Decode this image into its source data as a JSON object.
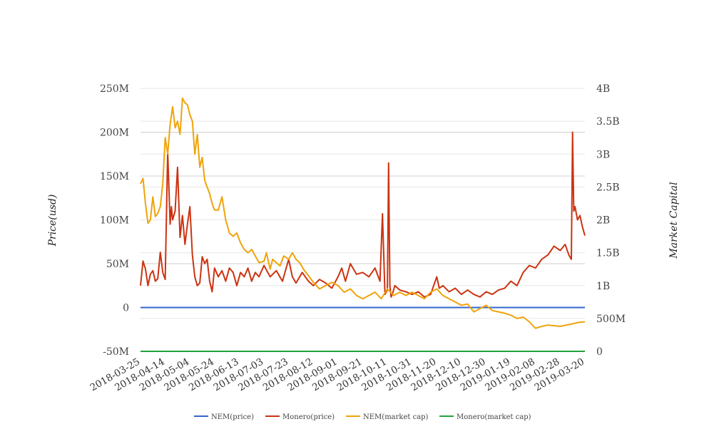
{
  "chart_data": {
    "type": "line",
    "title": "",
    "ylabel": "Price(usd)",
    "y2label": "Market Capital",
    "ylim": [
      -50000000,
      250000000
    ],
    "y2lim": [
      0,
      4000000000
    ],
    "yticks": [
      "250M",
      "200M",
      "150M",
      "100M",
      "50M",
      "0",
      "-50M"
    ],
    "y2ticks": [
      "4B",
      "3.5B",
      "3B",
      "2.5B",
      "2B",
      "1.5B",
      "1B",
      "500M",
      "0"
    ],
    "xticks": [
      "2018-03-25",
      "2018-04-14",
      "2018-05-04",
      "2018-05-24",
      "2018-06-13",
      "2018-07-03",
      "2018-07-23",
      "2018-08-12",
      "2018-09-01",
      "2018-09-21",
      "2018-10-11",
      "2018-10-31",
      "2018-11-20",
      "2018-12-10",
      "2018-12-30",
      "2019-01-19",
      "2019-02-08",
      "2019-02-28",
      "2019-03-20"
    ],
    "x_range": [
      "2018-03-25",
      "2019-03-20"
    ],
    "legend_position": "bottom",
    "grid": true,
    "series": [
      {
        "name": "NEM(price)",
        "axis": "left",
        "color": "#3366cc",
        "x": [
          "2018-03-25",
          "2019-03-20"
        ],
        "values": [
          0,
          0
        ]
      },
      {
        "name": "Monero(price)",
        "axis": "left",
        "color": "#cc3311",
        "x": [
          "2018-03-25",
          "2018-03-27",
          "2018-03-29",
          "2018-03-31",
          "2018-04-02",
          "2018-04-04",
          "2018-04-06",
          "2018-04-08",
          "2018-04-10",
          "2018-04-12",
          "2018-04-14",
          "2018-04-16",
          "2018-04-18",
          "2018-04-19",
          "2018-04-20",
          "2018-04-22",
          "2018-04-24",
          "2018-04-26",
          "2018-04-28",
          "2018-04-30",
          "2018-05-02",
          "2018-05-04",
          "2018-05-06",
          "2018-05-08",
          "2018-05-10",
          "2018-05-12",
          "2018-05-14",
          "2018-05-16",
          "2018-05-18",
          "2018-05-20",
          "2018-05-22",
          "2018-05-24",
          "2018-05-27",
          "2018-05-30",
          "2018-06-02",
          "2018-06-05",
          "2018-06-08",
          "2018-06-11",
          "2018-06-14",
          "2018-06-17",
          "2018-06-20",
          "2018-06-23",
          "2018-06-26",
          "2018-06-29",
          "2018-07-03",
          "2018-07-08",
          "2018-07-13",
          "2018-07-18",
          "2018-07-23",
          "2018-07-26",
          "2018-07-29",
          "2018-08-03",
          "2018-08-08",
          "2018-08-12",
          "2018-08-17",
          "2018-08-22",
          "2018-08-27",
          "2018-09-01",
          "2018-09-04",
          "2018-09-07",
          "2018-09-11",
          "2018-09-16",
          "2018-09-21",
          "2018-09-26",
          "2018-10-01",
          "2018-10-05",
          "2018-10-07",
          "2018-10-09",
          "2018-10-11",
          "2018-10-12",
          "2018-10-13",
          "2018-10-14",
          "2018-10-15",
          "2018-10-17",
          "2018-10-21",
          "2018-10-26",
          "2018-10-31",
          "2018-11-05",
          "2018-11-10",
          "2018-11-15",
          "2018-11-20",
          "2018-11-22",
          "2018-11-25",
          "2018-11-30",
          "2018-12-05",
          "2018-12-10",
          "2018-12-15",
          "2018-12-20",
          "2018-12-25",
          "2018-12-30",
          "2019-01-04",
          "2019-01-09",
          "2019-01-14",
          "2019-01-19",
          "2019-01-24",
          "2019-01-29",
          "2019-02-03",
          "2019-02-08",
          "2019-02-13",
          "2019-02-18",
          "2019-02-23",
          "2019-02-28",
          "2019-03-04",
          "2019-03-07",
          "2019-03-09",
          "2019-03-10",
          "2019-03-11",
          "2019-03-12",
          "2019-03-14",
          "2019-03-16",
          "2019-03-18",
          "2019-03-20"
        ],
        "values": [
          25000000,
          53000000,
          44000000,
          25000000,
          38000000,
          42000000,
          30000000,
          33000000,
          63000000,
          40000000,
          32000000,
          178000000,
          95000000,
          115000000,
          100000000,
          110000000,
          160000000,
          80000000,
          105000000,
          72000000,
          95000000,
          115000000,
          60000000,
          35000000,
          25000000,
          28000000,
          58000000,
          50000000,
          55000000,
          30000000,
          18000000,
          45000000,
          35000000,
          42000000,
          30000000,
          45000000,
          40000000,
          25000000,
          40000000,
          35000000,
          45000000,
          30000000,
          40000000,
          35000000,
          48000000,
          35000000,
          42000000,
          30000000,
          55000000,
          35000000,
          28000000,
          40000000,
          30000000,
          25000000,
          32000000,
          28000000,
          22000000,
          35000000,
          45000000,
          30000000,
          50000000,
          38000000,
          40000000,
          35000000,
          45000000,
          30000000,
          107000000,
          15000000,
          20000000,
          165000000,
          25000000,
          12000000,
          15000000,
          25000000,
          20000000,
          18000000,
          15000000,
          18000000,
          12000000,
          15000000,
          35000000,
          22000000,
          25000000,
          18000000,
          22000000,
          15000000,
          20000000,
          15000000,
          12000000,
          18000000,
          15000000,
          20000000,
          22000000,
          30000000,
          25000000,
          40000000,
          48000000,
          45000000,
          55000000,
          60000000,
          70000000,
          65000000,
          72000000,
          60000000,
          55000000,
          200000000,
          110000000,
          115000000,
          100000000,
          105000000,
          92000000,
          82000000
        ]
      },
      {
        "name": "NEM(market cap)",
        "axis": "right",
        "color": "#f0a30a",
        "x": [
          "2018-03-25",
          "2018-03-27",
          "2018-03-29",
          "2018-03-31",
          "2018-04-02",
          "2018-04-04",
          "2018-04-06",
          "2018-04-08",
          "2018-04-10",
          "2018-04-12",
          "2018-04-14",
          "2018-04-16",
          "2018-04-18",
          "2018-04-20",
          "2018-04-22",
          "2018-04-24",
          "2018-04-26",
          "2018-04-28",
          "2018-04-30",
          "2018-05-02",
          "2018-05-04",
          "2018-05-06",
          "2018-05-08",
          "2018-05-10",
          "2018-05-12",
          "2018-05-14",
          "2018-05-16",
          "2018-05-18",
          "2018-05-20",
          "2018-05-22",
          "2018-05-24",
          "2018-05-27",
          "2018-05-30",
          "2018-06-02",
          "2018-06-05",
          "2018-06-08",
          "2018-06-11",
          "2018-06-14",
          "2018-06-17",
          "2018-06-20",
          "2018-06-23",
          "2018-06-26",
          "2018-06-29",
          "2018-07-03",
          "2018-07-05",
          "2018-07-08",
          "2018-07-10",
          "2018-07-13",
          "2018-07-16",
          "2018-07-19",
          "2018-07-23",
          "2018-07-26",
          "2018-07-29",
          "2018-08-01",
          "2018-08-04",
          "2018-08-08",
          "2018-08-12",
          "2018-08-17",
          "2018-08-22",
          "2018-08-27",
          "2018-09-01",
          "2018-09-06",
          "2018-09-11",
          "2018-09-16",
          "2018-09-21",
          "2018-09-26",
          "2018-10-01",
          "2018-10-06",
          "2018-10-11",
          "2018-10-16",
          "2018-10-21",
          "2018-10-26",
          "2018-10-31",
          "2018-11-05",
          "2018-11-10",
          "2018-11-15",
          "2018-11-20",
          "2018-11-25",
          "2018-11-30",
          "2018-12-05",
          "2018-12-10",
          "2018-12-15",
          "2018-12-20",
          "2018-12-25",
          "2018-12-30",
          "2019-01-04",
          "2019-01-09",
          "2019-01-14",
          "2019-01-19",
          "2019-01-24",
          "2019-01-29",
          "2019-02-03",
          "2019-02-08",
          "2019-02-13",
          "2019-02-18",
          "2019-02-23",
          "2019-02-28",
          "2019-03-05",
          "2019-03-10",
          "2019-03-15",
          "2019-03-20"
        ],
        "values": [
          2550000000,
          2630000000,
          2250000000,
          1950000000,
          2000000000,
          2350000000,
          2050000000,
          2100000000,
          2200000000,
          2550000000,
          3250000000,
          3000000000,
          3450000000,
          3720000000,
          3400000000,
          3500000000,
          3300000000,
          3850000000,
          3780000000,
          3750000000,
          3600000000,
          3500000000,
          3000000000,
          3300000000,
          2800000000,
          2950000000,
          2600000000,
          2500000000,
          2400000000,
          2250000000,
          2150000000,
          2150000000,
          2350000000,
          2000000000,
          1800000000,
          1750000000,
          1800000000,
          1650000000,
          1550000000,
          1500000000,
          1550000000,
          1450000000,
          1350000000,
          1370000000,
          1500000000,
          1250000000,
          1400000000,
          1350000000,
          1300000000,
          1450000000,
          1400000000,
          1500000000,
          1400000000,
          1350000000,
          1250000000,
          1150000000,
          1050000000,
          950000000,
          1000000000,
          1050000000,
          1000000000,
          900000000,
          950000000,
          850000000,
          800000000,
          850000000,
          900000000,
          800000000,
          950000000,
          850000000,
          900000000,
          850000000,
          900000000,
          850000000,
          800000000,
          900000000,
          950000000,
          850000000,
          800000000,
          750000000,
          700000000,
          720000000,
          600000000,
          650000000,
          700000000,
          620000000,
          600000000,
          580000000,
          550000000,
          500000000,
          520000000,
          450000000,
          350000000,
          380000000,
          400000000,
          390000000,
          380000000,
          400000000,
          420000000,
          440000000,
          450000000
        ]
      },
      {
        "name": "Monero(market cap)",
        "axis": "right",
        "color": "#22a33a",
        "x": [
          "2018-03-25",
          "2019-03-20"
        ],
        "values": [
          0,
          0
        ]
      }
    ]
  }
}
